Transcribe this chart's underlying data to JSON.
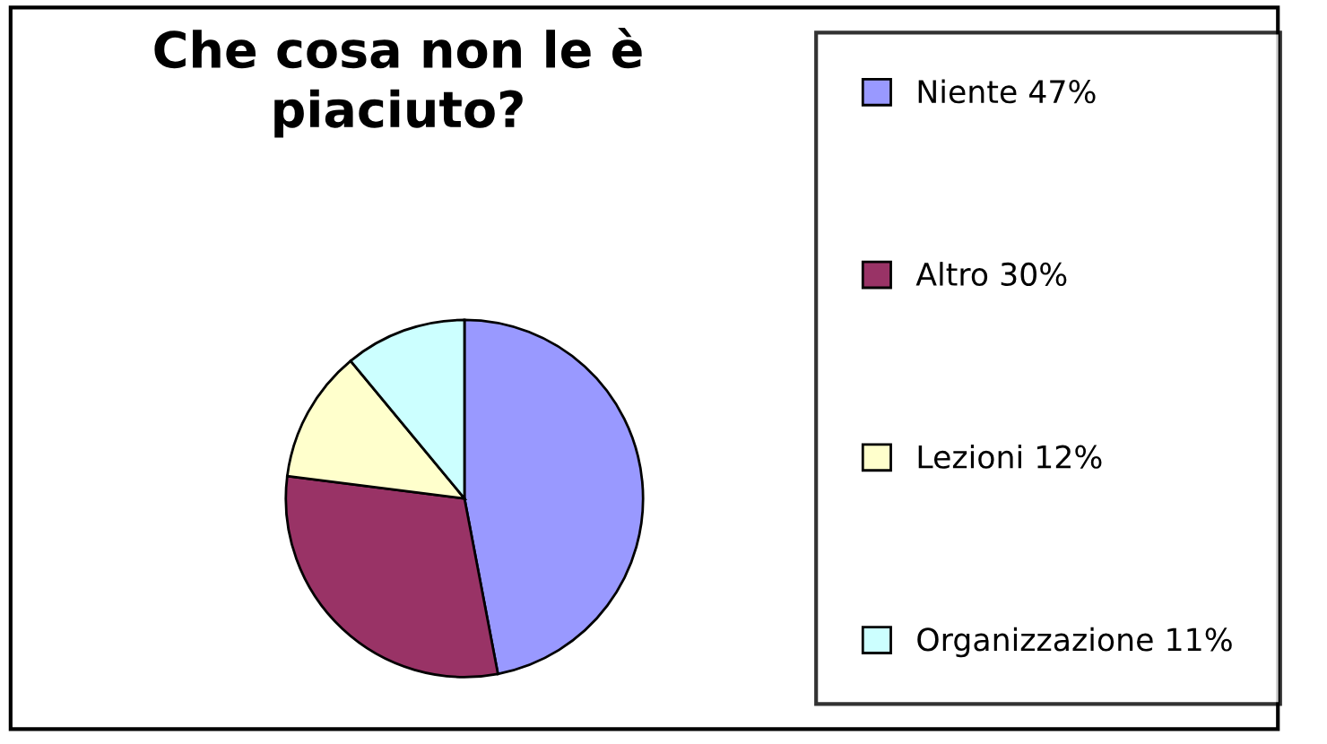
{
  "chart_data": {
    "type": "pie",
    "title": "Che cosa non le è\npiaciuto?",
    "categories": [
      "Niente 47%",
      "Altro 30%",
      "Lezioni 12%",
      "Organizzazione 11%"
    ],
    "values": [
      47,
      30,
      12,
      11
    ],
    "colors": [
      "#9999ff",
      "#993366",
      "#ffffcc",
      "#ccffff"
    ],
    "legend": "right"
  }
}
